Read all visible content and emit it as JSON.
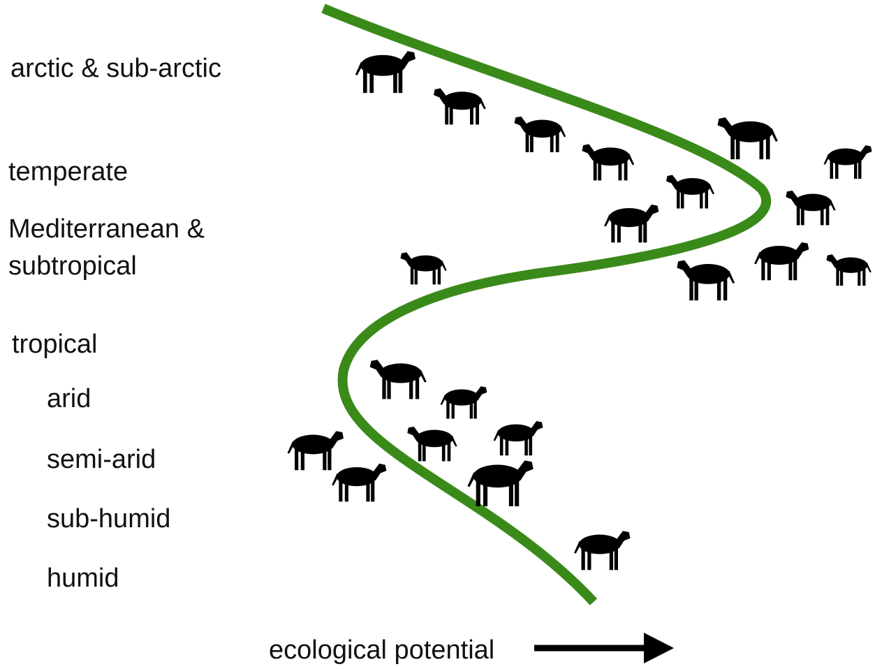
{
  "climate_zones": [
    "arctic & sub-arctic",
    "temperate",
    "Mediterranean &",
    "subtropical",
    "tropical",
    "arid",
    "semi-arid",
    "sub-humid",
    "humid"
  ],
  "axis_label": "ecological potential"
}
